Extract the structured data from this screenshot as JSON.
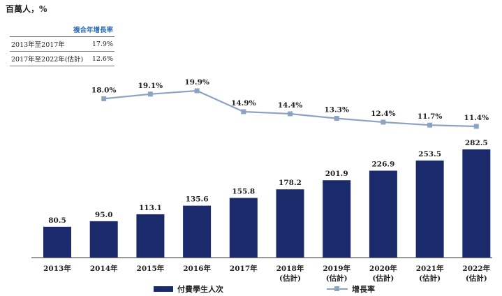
{
  "unit_label": "百萬人，%",
  "cagr_table": {
    "header": "複合年增長率",
    "rows": [
      {
        "period": "2013年至2017年",
        "value": "17.9%"
      },
      {
        "period": "2017年至2022年(估計)",
        "value": "12.6%"
      }
    ]
  },
  "chart_data": {
    "type": "bar",
    "categories": [
      "2013年",
      "2014年",
      "2015年",
      "2016年",
      "2017年",
      "2018年\n(估計)",
      "2019年\n(估計)",
      "2020年\n(估計)",
      "2021年\n(估計)",
      "2022年\n(估計)"
    ],
    "series": [
      {
        "name": "付費學生人次",
        "type": "bar",
        "color": "#1b2a6b",
        "values": [
          80.5,
          95.0,
          113.1,
          135.6,
          155.8,
          178.2,
          201.9,
          226.9,
          253.5,
          282.5
        ],
        "labels": [
          "80.5",
          "95.0",
          "113.1",
          "135.6",
          "155.8",
          "178.2",
          "201.9",
          "226.9",
          "253.5",
          "282.5"
        ]
      },
      {
        "name": "增長率",
        "type": "line",
        "color": "#8da3c4",
        "values": [
          null,
          18.0,
          19.1,
          19.9,
          14.9,
          14.4,
          13.3,
          12.4,
          11.7,
          11.4
        ],
        "labels": [
          null,
          "18.0%",
          "19.1%",
          "19.9%",
          "14.9%",
          "14.4%",
          "13.3%",
          "12.4%",
          "11.7%",
          "11.4%"
        ]
      }
    ],
    "title": "",
    "xlabel": "",
    "ylabel": "百萬人，%",
    "grid": false,
    "legend": "bottom"
  },
  "legend": {
    "bar_label": "付費學生人次",
    "line_label": "增長率"
  }
}
